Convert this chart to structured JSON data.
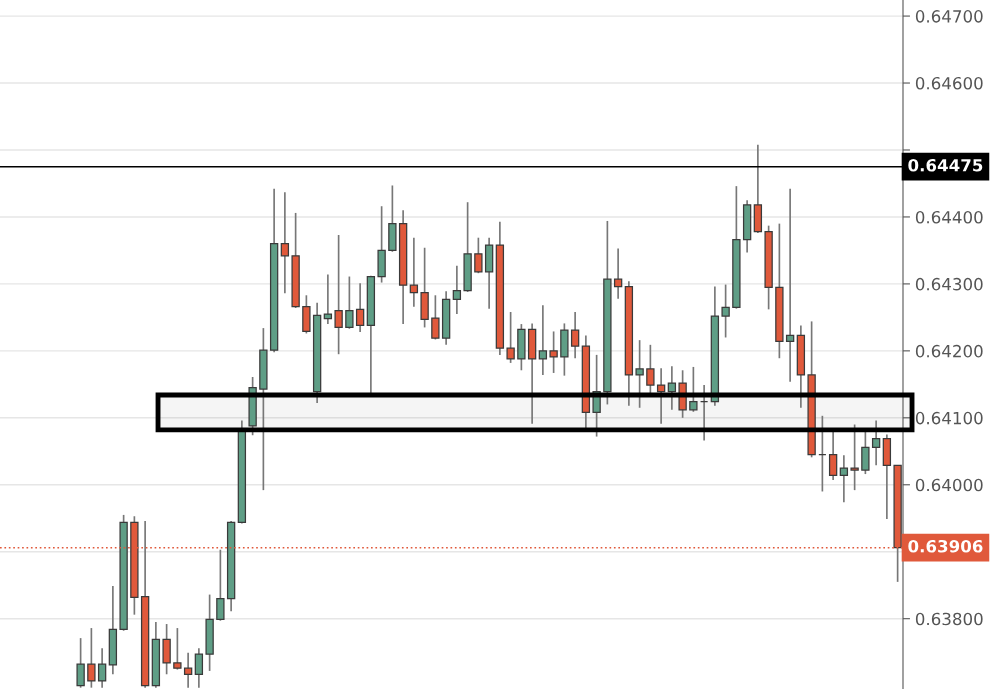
{
  "chart_data": {
    "type": "candlestick",
    "categories": [
      null,
      null,
      null,
      null,
      null,
      null,
      null,
      null,
      null,
      null,
      null,
      null,
      null,
      null,
      null,
      null,
      null,
      null,
      null,
      null,
      null,
      null,
      null,
      null,
      null,
      null,
      null,
      null,
      null,
      null,
      null,
      null,
      null,
      null,
      null,
      null,
      null,
      null,
      null,
      null,
      null,
      null,
      null,
      null,
      null,
      null,
      null,
      null,
      null,
      null,
      null,
      null,
      null,
      null,
      null,
      null,
      null,
      null,
      null,
      null,
      null,
      null,
      null,
      null,
      null,
      null,
      null,
      null,
      null,
      null,
      null,
      null,
      null,
      null,
      null,
      null,
      null,
      null,
      null,
      null,
      null,
      null,
      null,
      null
    ],
    "ohlc": [
      null,
      null,
      null,
      null,
      null,
      null,
      null,
      [
        0.637,
        0.63771,
        0.63697,
        0.63732
      ],
      [
        0.63732,
        0.63786,
        0.63697,
        0.63707
      ],
      [
        0.63707,
        0.63756,
        0.63697,
        0.63732
      ],
      [
        0.63731,
        0.63849,
        0.63717,
        0.63784
      ],
      [
        0.63784,
        0.63955,
        0.63782,
        0.63944
      ],
      [
        0.63944,
        0.63953,
        0.63806,
        0.63832
      ],
      [
        0.63833,
        0.63946,
        0.63697,
        0.637
      ],
      [
        0.637,
        0.63795,
        0.63697,
        0.63769
      ],
      [
        0.63769,
        0.63792,
        0.63717,
        0.63734
      ],
      [
        0.63734,
        0.63786,
        0.63724,
        0.63726
      ],
      [
        0.63726,
        0.63749,
        0.63697,
        0.63717
      ],
      [
        0.63717,
        0.63756,
        0.63697,
        0.63747
      ],
      [
        0.63747,
        0.63836,
        0.63722,
        0.63799
      ],
      [
        0.63799,
        0.63903,
        0.63797,
        0.6383
      ],
      [
        0.6383,
        0.63946,
        0.63811,
        0.63944
      ],
      [
        0.63944,
        0.64096,
        0.63942,
        0.64082
      ],
      [
        0.64088,
        0.64161,
        0.64074,
        0.64145
      ],
      [
        0.64143,
        0.64234,
        0.63992,
        0.64201
      ],
      [
        0.64201,
        0.64442,
        0.64198,
        0.6436
      ],
      [
        0.6436,
        0.64437,
        0.64286,
        0.64342
      ],
      [
        0.64342,
        0.64406,
        0.64264,
        0.64266
      ],
      [
        0.64266,
        0.64283,
        0.64226,
        0.64229
      ],
      [
        0.64139,
        0.64272,
        0.64122,
        0.64253
      ],
      [
        0.64248,
        0.64314,
        0.6424,
        0.64255
      ],
      [
        0.6426,
        0.64373,
        0.64195,
        0.64235
      ],
      [
        0.64235,
        0.64311,
        0.64233,
        0.6426
      ],
      [
        0.64262,
        0.64301,
        0.64228,
        0.64238
      ],
      [
        0.64238,
        0.64312,
        0.64133,
        0.64311
      ],
      [
        0.64311,
        0.64416,
        0.64302,
        0.6435
      ],
      [
        0.6435,
        0.64447,
        0.64348,
        0.6439
      ],
      [
        0.6439,
        0.6441,
        0.6424,
        0.64298
      ],
      [
        0.64298,
        0.64369,
        0.64266,
        0.64287
      ],
      [
        0.64287,
        0.64354,
        0.64235,
        0.64247
      ],
      [
        0.64249,
        0.64283,
        0.64217,
        0.64219
      ],
      [
        0.64219,
        0.64289,
        0.64209,
        0.64277
      ],
      [
        0.64277,
        0.64327,
        0.64255,
        0.6429
      ],
      [
        0.6429,
        0.64422,
        0.64288,
        0.64345
      ],
      [
        0.64345,
        0.64369,
        0.64316,
        0.64318
      ],
      [
        0.64318,
        0.64369,
        0.64263,
        0.64358
      ],
      [
        0.64358,
        0.64393,
        0.64194,
        0.64204
      ],
      [
        0.64204,
        0.64258,
        0.64182,
        0.64188
      ],
      [
        0.64188,
        0.6424,
        0.64171,
        0.64232
      ],
      [
        0.64232,
        0.64241,
        0.64091,
        0.64188
      ],
      [
        0.64188,
        0.64268,
        0.64164,
        0.642
      ],
      [
        0.642,
        0.64229,
        0.64167,
        0.64191
      ],
      [
        0.64191,
        0.64241,
        0.64163,
        0.64231
      ],
      [
        0.64231,
        0.64258,
        0.64189,
        0.64207
      ],
      [
        0.64207,
        0.64223,
        0.64079,
        0.64108
      ],
      [
        0.64108,
        0.64194,
        0.64072,
        0.64139
      ],
      [
        0.64139,
        0.64394,
        0.6412,
        0.64307
      ],
      [
        0.64307,
        0.64353,
        0.64278,
        0.64296
      ],
      [
        0.64296,
        0.64304,
        0.64118,
        0.64164
      ],
      [
        0.64164,
        0.64216,
        0.64115,
        0.64173
      ],
      [
        0.64173,
        0.64209,
        0.64134,
        0.64149
      ],
      [
        0.64149,
        0.64174,
        0.64091,
        0.64139
      ],
      [
        0.64139,
        0.64177,
        0.64112,
        0.64152
      ],
      [
        0.64152,
        0.64171,
        0.641,
        0.64112
      ],
      [
        0.64112,
        0.64176,
        0.64109,
        0.64124
      ],
      [
        0.64124,
        0.64149,
        0.64066,
        0.64124
      ],
      [
        0.64124,
        0.64296,
        0.64118,
        0.64252
      ],
      [
        0.64252,
        0.64299,
        0.6422,
        0.64265
      ],
      [
        0.64265,
        0.64446,
        0.64263,
        0.64366
      ],
      [
        0.64366,
        0.64425,
        0.64347,
        0.64418
      ],
      [
        0.64418,
        0.64508,
        0.64376,
        0.64378
      ],
      [
        0.64378,
        0.64387,
        0.64262,
        0.64295
      ],
      [
        0.64295,
        0.6439,
        0.64189,
        0.64214
      ],
      [
        0.64214,
        0.64442,
        0.64154,
        0.64223
      ],
      [
        0.64223,
        0.64238,
        0.64115,
        0.64164
      ],
      [
        0.64164,
        0.64244,
        0.64041,
        0.64045
      ],
      [
        0.64045,
        0.64103,
        0.6399,
        0.64045
      ],
      [
        0.64045,
        0.64081,
        0.64007,
        0.64014
      ],
      [
        0.64014,
        0.64044,
        0.63974,
        0.64025
      ],
      [
        0.64025,
        0.6409,
        0.63992,
        0.64022
      ],
      [
        0.64022,
        0.64081,
        0.64016,
        0.64056
      ],
      [
        0.64056,
        0.64096,
        0.64029,
        0.64069
      ],
      [
        0.64069,
        0.64075,
        0.63949,
        0.64029
      ],
      [
        0.64029,
        0.64029,
        0.63855,
        0.63906
      ]
    ],
    "colors": [
      null,
      null,
      null,
      null,
      null,
      null,
      null,
      "#5f9e86",
      "#e0593b",
      "#5f9e86",
      "#5f9e86",
      "#5f9e86",
      "#e0593b",
      "#e0593b",
      "#5f9e86",
      "#e0593b",
      "#e0593b",
      "#e0593b",
      "#5f9e86",
      "#5f9e86",
      "#5f9e86",
      "#5f9e86",
      "#5f9e86",
      "#5f9e86",
      "#5f9e86",
      "#5f9e86",
      "#e0593b",
      "#e0593b",
      "#e0593b",
      "#5f9e86",
      "#5f9e86",
      "#e0593b",
      "#5f9e86",
      "#e0593b",
      "#5f9e86",
      "#5f9e86",
      "#5f9e86",
      "#e0593b",
      "#e0593b",
      "#e0593b",
      "#e0593b",
      "#5f9e86",
      "#5f9e86",
      "#5f9e86",
      "#e0593b",
      "#5f9e86",
      "#e0593b",
      "#e0593b",
      "#5f9e86",
      "#e0593b",
      "#5f9e86",
      "#e0593b",
      "#5f9e86",
      "#e0593b",
      "#e0593b",
      "#5f9e86",
      "#5f9e86",
      "#e0593b",
      "#e0593b",
      "#5f9e86",
      "#e0593b",
      "#e0593b",
      "#5f9e86",
      "#e0593b",
      "#5f9e86",
      "#3a3a3a",
      "#5f9e86",
      "#5f9e86",
      "#5f9e86",
      "#5f9e86",
      "#e0593b",
      "#e0593b",
      "#e0593b",
      "#5f9e86",
      "#e0593b",
      "#e0593b",
      "#3a3a3a",
      "#e0593b",
      "#5f9e86",
      "#e0593b",
      "#5f9e86",
      "#5f9e86",
      "#e0593b",
      "#e0593b"
    ],
    "ylim": [
      0.63695,
      0.64724
    ],
    "yticks": [
      {
        "value": 0.638,
        "label": "0.63800"
      },
      {
        "value": 0.639,
        "label": null
      },
      {
        "value": 0.64,
        "label": "0.64000"
      },
      {
        "value": 0.641,
        "label": "0.64100"
      },
      {
        "value": 0.642,
        "label": "0.64200"
      },
      {
        "value": 0.643,
        "label": "0.64300"
      },
      {
        "value": 0.644,
        "label": "0.64400"
      },
      {
        "value": 0.645,
        "label": null
      },
      {
        "value": 0.646,
        "label": "0.64600"
      },
      {
        "value": 0.647,
        "label": "0.64700"
      }
    ],
    "ref_lines": [
      {
        "axis": "y",
        "value": 0.64475,
        "label": "0.64475",
        "color": "#000000",
        "line_style": "solid"
      },
      {
        "axis": "y",
        "value": 0.63906,
        "label": "0.63906",
        "color": "#e0593b",
        "line_style": "dotted"
      }
    ],
    "bands": [
      {
        "axis": "y",
        "from": 0.64082,
        "to": 0.64134,
        "color": "#000000"
      }
    ],
    "grid": "y"
  }
}
